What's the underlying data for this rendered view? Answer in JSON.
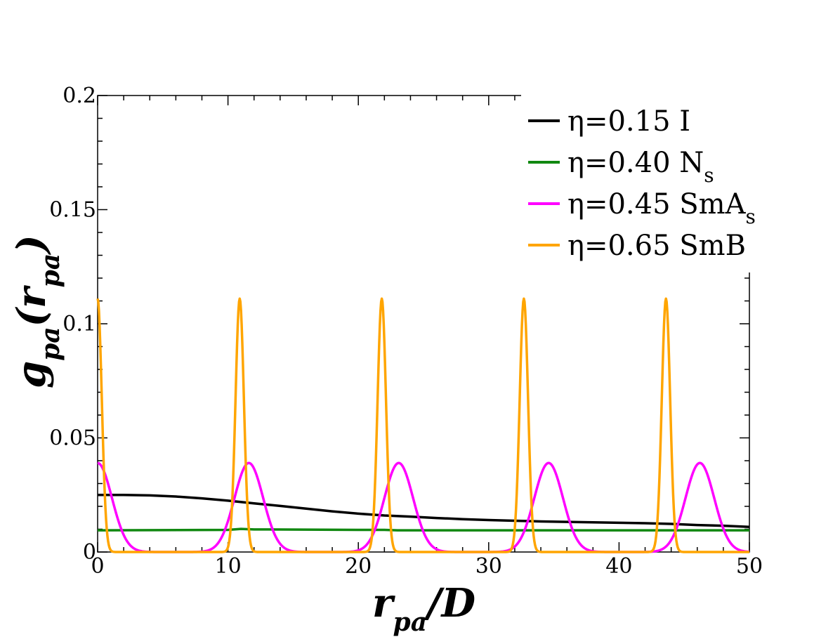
{
  "chart_data": {
    "type": "line",
    "title": "",
    "xlabel": {
      "main": "r",
      "sub": "pa",
      "suffix": "/D"
    },
    "ylabel": {
      "main": "g",
      "sub1": "pa",
      "open": "(",
      "arg": "r",
      "sub2": "pa",
      "close": ")"
    },
    "xlim": [
      0,
      50
    ],
    "ylim": [
      0,
      0.2
    ],
    "xticks": [
      0,
      10,
      20,
      30,
      40,
      50
    ],
    "xtick_labels": [
      "0",
      "10",
      "20",
      "30",
      "40",
      "50"
    ],
    "yticks": [
      0,
      0.05,
      0.1,
      0.15,
      0.2
    ],
    "ytick_labels": [
      "0",
      "0.05",
      "0.1",
      "0.15",
      "0.2"
    ],
    "grid": false,
    "legend_position": "top-right",
    "series": [
      {
        "name": "η=0.15 I",
        "label_main": "η=0.15 I",
        "label_sub": "",
        "color": "#000000",
        "x": [
          0,
          2,
          4,
          6,
          8,
          10,
          12,
          14,
          16,
          18,
          20,
          22,
          24,
          26,
          28,
          30,
          32,
          34,
          36,
          38,
          40,
          42,
          44,
          46,
          48,
          50
        ],
        "y": [
          0.025,
          0.025,
          0.0248,
          0.0243,
          0.0235,
          0.0225,
          0.0213,
          0.0202,
          0.019,
          0.0178,
          0.0168,
          0.016,
          0.0155,
          0.0149,
          0.0144,
          0.014,
          0.0137,
          0.0134,
          0.0132,
          0.013,
          0.0128,
          0.0126,
          0.0123,
          0.0118,
          0.0115,
          0.011
        ]
      },
      {
        "name": "η=0.40 Ns",
        "label_main": "η=0.40 N",
        "label_sub": "s",
        "color": "#118811",
        "x": [
          0,
          10,
          11,
          12,
          20,
          22,
          23,
          30,
          40,
          50
        ],
        "y": [
          0.0095,
          0.0097,
          0.0101,
          0.0099,
          0.0097,
          0.0097,
          0.0095,
          0.0095,
          0.0095,
          0.0095
        ]
      },
      {
        "name": "η=0.45 SmAs",
        "label_main": "η=0.45 SmA",
        "label_sub": "s",
        "color": "#ff00ff",
        "peaks_x": [
          0,
          11.6,
          23.1,
          34.6,
          46.2
        ],
        "peak_height": 0.039,
        "peak_width_sigma": 1.1
      },
      {
        "name": "η=0.65 SmB",
        "label_main": "η=0.65 SmB",
        "label_sub": "",
        "color": "#ffa500",
        "peaks_x": [
          0,
          10.9,
          21.8,
          32.7,
          43.6
        ],
        "peak_height": 0.111,
        "peak_width_sigma": 0.32
      }
    ]
  }
}
